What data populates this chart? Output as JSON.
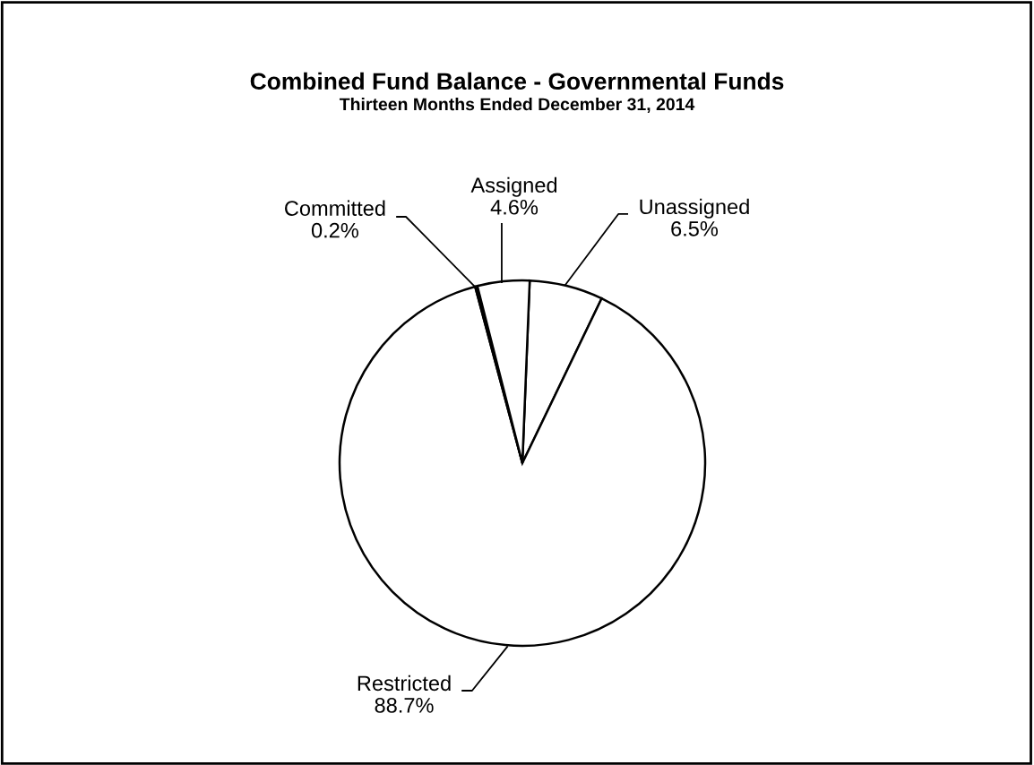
{
  "chart_data": {
    "type": "pie",
    "title": "Combined Fund Balance - Governmental Funds",
    "subtitle": "Thirteen Months Ended December 31, 2014",
    "categories": [
      "Unassigned",
      "Restricted",
      "Committed",
      "Assigned"
    ],
    "values": [
      6.5,
      88.7,
      0.2,
      4.6
    ],
    "colors": [
      "#ffffff",
      "#ffffff",
      "#ffffff",
      "#ffffff"
    ],
    "value_labels": [
      "6.5%",
      "88.7%",
      "0.2%",
      "4.6%"
    ],
    "legend": false
  }
}
